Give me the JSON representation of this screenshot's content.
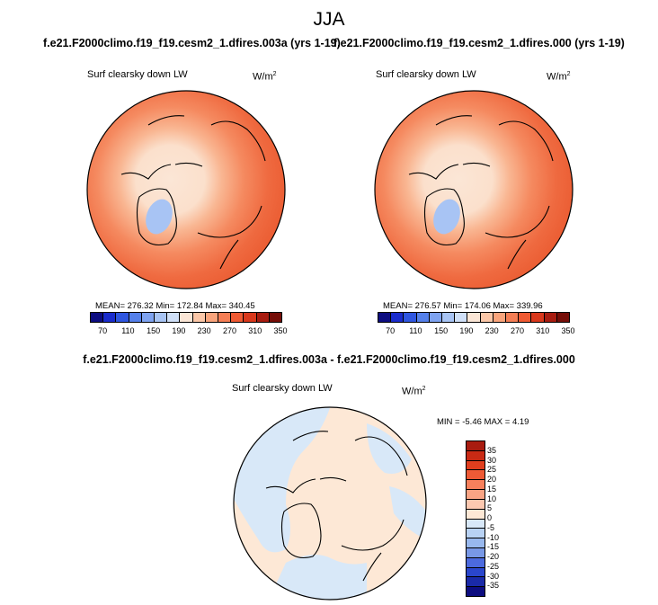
{
  "season": "JJA",
  "panels": [
    {
      "case_title": "f.e21.F2000climo.f19_f19.cesm2_1.dfires.003a (yrs 1-19)",
      "variable": "Surf clearsky down LW",
      "units": "W/m",
      "units_exp": "2",
      "stats": "MEAN= 276.32  Min= 172.84  Max= 340.45"
    },
    {
      "case_title": "f.e21.F2000climo.f19_f19.cesm2_1.dfires.000 (yrs 1-19)",
      "variable": "Surf clearsky down LW",
      "units": "W/m",
      "units_exp": "2",
      "stats": "MEAN= 276.57  Min= 174.06  Max= 339.96"
    }
  ],
  "abs_colorbar": {
    "colors": [
      "#0d0d80",
      "#1a2ccc",
      "#2f56e0",
      "#5580ea",
      "#7fa3f0",
      "#a8c4f4",
      "#d0e0f8",
      "#fbe6d6",
      "#fbc7a8",
      "#f9a47c",
      "#f57e55",
      "#ef5a33",
      "#d9381c",
      "#a81c10",
      "#760e08"
    ],
    "labels": [
      "70",
      "110",
      "150",
      "190",
      "230",
      "270",
      "310",
      "350"
    ]
  },
  "diff": {
    "title": "f.e21.F2000climo.f19_f19.cesm2_1.dfires.003a - f.e21.F2000climo.f19_f19.cesm2_1.dfires.000",
    "variable": "Surf clearsky down LW",
    "units": "W/m",
    "units_exp": "2",
    "stats": "MIN = -5.46 MAX =   4.19",
    "colorbar": {
      "colors": [
        "#a81c10",
        "#c92a14",
        "#e03e1e",
        "#ee5a36",
        "#f6805c",
        "#f9a484",
        "#fcc8b0",
        "#fde8d6",
        "#d8e8f8",
        "#b8d2f4",
        "#98b8ee",
        "#7898e6",
        "#4c6ade",
        "#2a46cc",
        "#1a2aa8",
        "#0d0d80"
      ],
      "labels": [
        "35",
        "30",
        "25",
        "20",
        "15",
        "10",
        "5",
        "0",
        "-5",
        "-10",
        "-15",
        "-20",
        "-25",
        "-30",
        "-35"
      ]
    }
  }
}
